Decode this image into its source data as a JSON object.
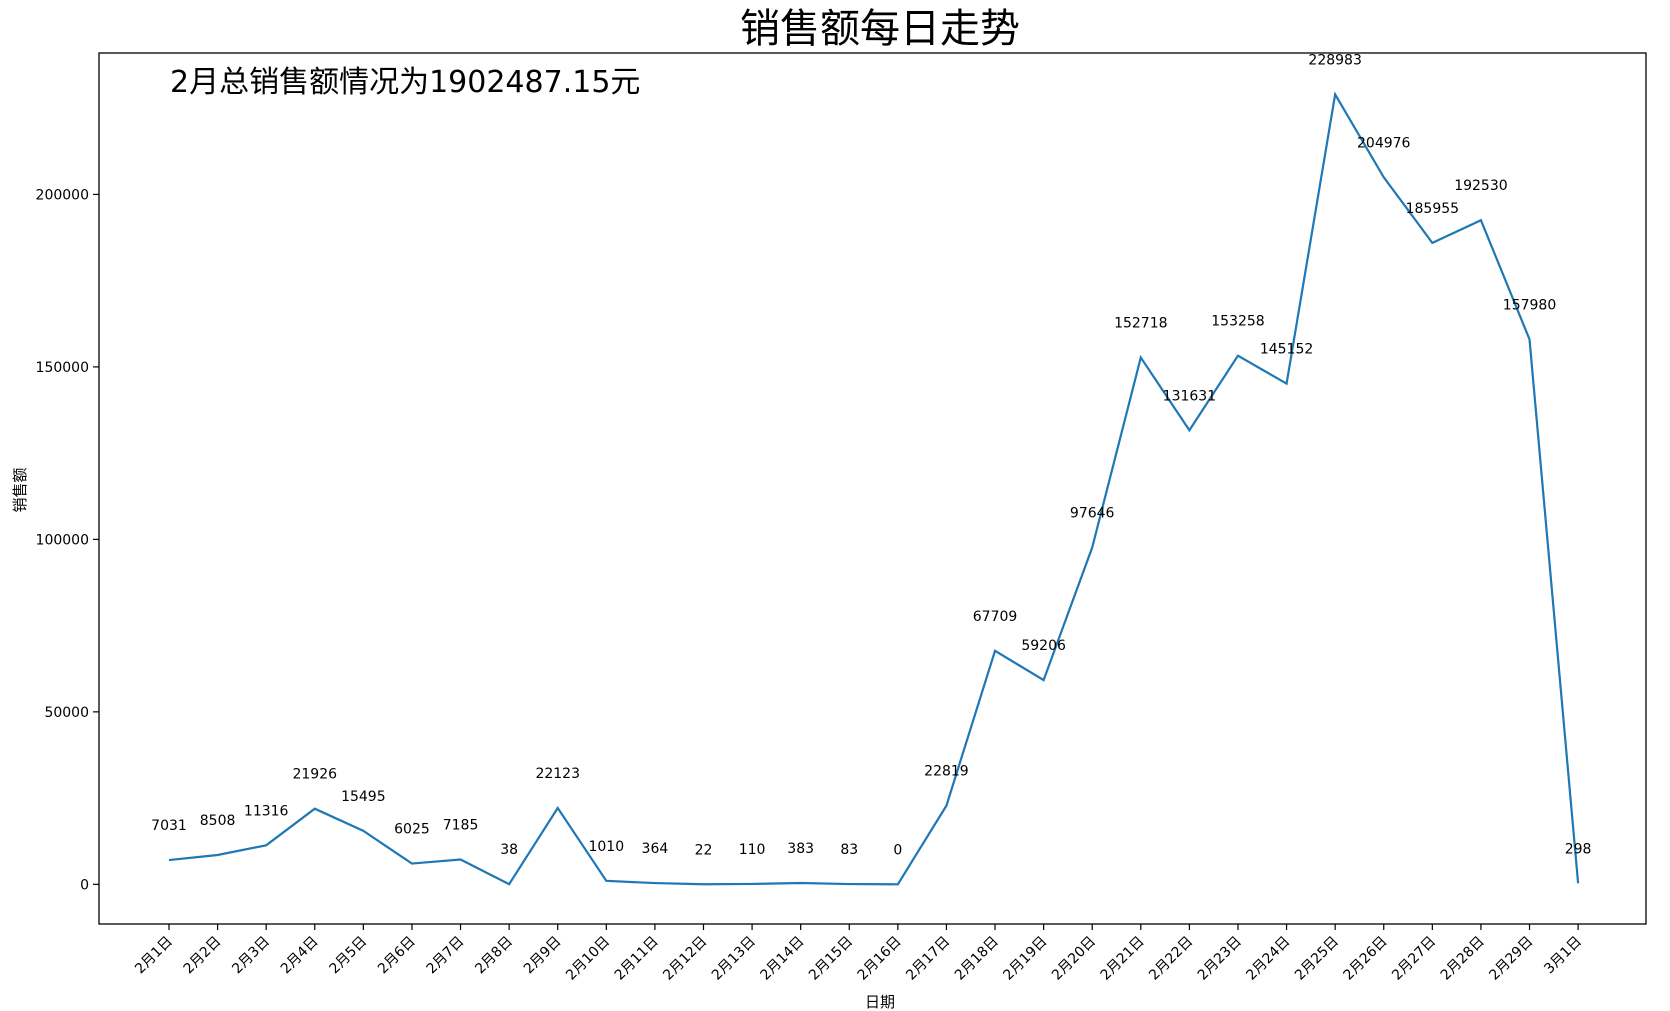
{
  "chart_data": {
    "type": "line",
    "title": "销售额每日走势",
    "annotation": "2月总销售额情况为1902487.15元",
    "xlabel": "日期",
    "ylabel": "销售额",
    "ylim": [
      -11500,
      241000
    ],
    "yticks": [
      0,
      50000,
      100000,
      150000,
      200000
    ],
    "grid": false,
    "line_color": "#1f77b4",
    "categories": [
      "2月1日",
      "2月2日",
      "2月3日",
      "2月4日",
      "2月5日",
      "2月6日",
      "2月7日",
      "2月8日",
      "2月9日",
      "2月10日",
      "2月11日",
      "2月12日",
      "2月13日",
      "2月14日",
      "2月15日",
      "2月16日",
      "2月17日",
      "2月18日",
      "2月19日",
      "2月20日",
      "2月21日",
      "2月22日",
      "2月23日",
      "2月24日",
      "2月25日",
      "2月26日",
      "2月27日",
      "2月28日",
      "2月29日",
      "3月1日"
    ],
    "series": [
      {
        "values": [
          7031,
          8508,
          11316,
          21926,
          15495,
          6025,
          7185,
          38,
          22123,
          1010,
          364,
          22,
          110,
          383,
          83,
          0,
          22819,
          67709,
          59206,
          97646,
          152718,
          131631,
          153258,
          145152,
          228983,
          204976,
          185955,
          192530,
          157980,
          298
        ],
        "labels": [
          "7031",
          "8508",
          "11316",
          "21926",
          "15495",
          "6025",
          "7185",
          "38",
          "22123",
          "1010",
          "364",
          "22",
          "110",
          "383",
          "83",
          "0",
          "22819",
          "67709",
          "59206",
          "97646",
          "152718",
          "131631",
          "153258",
          "145152",
          "228983",
          "204976",
          "185955",
          "192530",
          "157980",
          "298"
        ]
      }
    ]
  }
}
